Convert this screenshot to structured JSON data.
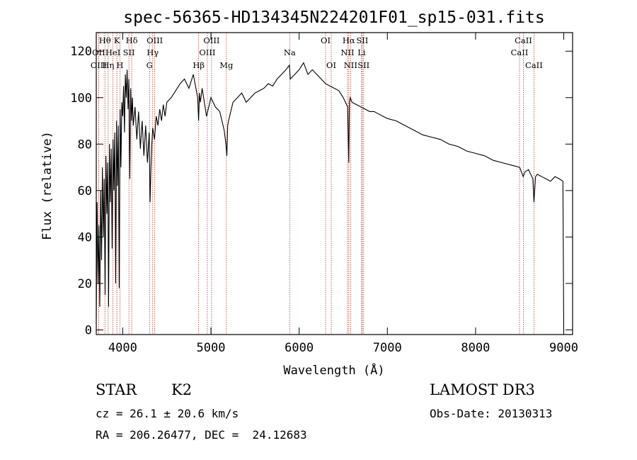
{
  "chart_data": {
    "type": "line",
    "title": "spec-56365-HD134345N224201F01_sp15-031.fits",
    "xlabel": "Wavelength (Å)",
    "ylabel": "Flux (relative)",
    "xlim": [
      3700,
      9100
    ],
    "ylim": [
      -2,
      128
    ],
    "xticks": [
      4000,
      5000,
      6000,
      7000,
      8000,
      9000
    ],
    "yticks": [
      0,
      20,
      40,
      60,
      80,
      100,
      120
    ],
    "spectrum": {
      "name": "flux",
      "x": [
        3700,
        3710,
        3720,
        3730,
        3740,
        3750,
        3760,
        3770,
        3780,
        3790,
        3800,
        3810,
        3820,
        3830,
        3840,
        3850,
        3860,
        3870,
        3880,
        3890,
        3900,
        3910,
        3920,
        3930,
        3940,
        3950,
        3960,
        3970,
        3980,
        3990,
        4000,
        4010,
        4020,
        4030,
        4040,
        4050,
        4060,
        4070,
        4080,
        4090,
        4100,
        4110,
        4120,
        4140,
        4160,
        4180,
        4200,
        4220,
        4240,
        4260,
        4280,
        4300,
        4310,
        4320,
        4330,
        4340,
        4360,
        4380,
        4400,
        4420,
        4440,
        4460,
        4480,
        4500,
        4550,
        4600,
        4650,
        4700,
        4750,
        4800,
        4850,
        4860,
        4870,
        4880,
        4900,
        4950,
        5000,
        5050,
        5100,
        5150,
        5170,
        5180,
        5190,
        5200,
        5250,
        5300,
        5350,
        5400,
        5450,
        5500,
        5550,
        5600,
        5650,
        5700,
        5750,
        5800,
        5850,
        5890,
        5900,
        5950,
        6000,
        6050,
        6100,
        6150,
        6200,
        6250,
        6300,
        6350,
        6400,
        6450,
        6500,
        6550,
        6563,
        6570,
        6580,
        6600,
        6650,
        6700,
        6750,
        6800,
        6850,
        6900,
        6950,
        7000,
        7100,
        7200,
        7300,
        7400,
        7500,
        7600,
        7700,
        7800,
        7900,
        8000,
        8100,
        8200,
        8300,
        8400,
        8500,
        8540,
        8560,
        8600,
        8650,
        8662,
        8680,
        8700,
        8750,
        8800,
        8850,
        8900,
        8950,
        8990,
        9000
      ],
      "y": [
        5,
        55,
        20,
        45,
        10,
        60,
        30,
        70,
        40,
        65,
        15,
        75,
        50,
        72,
        10,
        80,
        55,
        78,
        35,
        82,
        60,
        85,
        20,
        90,
        62,
        88,
        18,
        95,
        70,
        98,
        92,
        105,
        85,
        110,
        100,
        112,
        95,
        108,
        65,
        104,
        90,
        100,
        88,
        96,
        82,
        94,
        78,
        90,
        75,
        88,
        72,
        85,
        55,
        70,
        80,
        87,
        82,
        92,
        88,
        95,
        90,
        97,
        92,
        98,
        100,
        103,
        106,
        108,
        104,
        110,
        100,
        90,
        102,
        98,
        104,
        92,
        100,
        96,
        94,
        86,
        80,
        75,
        88,
        90,
        98,
        100,
        102,
        98,
        100,
        102,
        103,
        104,
        106,
        105,
        108,
        110,
        112,
        114,
        108,
        110,
        112,
        115,
        110,
        112,
        110,
        108,
        106,
        105,
        104,
        103,
        100,
        96,
        72,
        98,
        100,
        98,
        97,
        96,
        95,
        94,
        94,
        93,
        92,
        91,
        90,
        88,
        86,
        84,
        83,
        82,
        80,
        79,
        77,
        76,
        75,
        73,
        72,
        71,
        70,
        66,
        68,
        69,
        65,
        55,
        66,
        67,
        66,
        65,
        64,
        66,
        65,
        64,
        0
      ]
    },
    "lines": [
      {
        "name": "Hθ",
        "wave": 3798,
        "row": 0
      },
      {
        "name": "OII",
        "wave": 3727,
        "row": 1
      },
      {
        "name": "OIII",
        "wave": 3727,
        "row": 2
      },
      {
        "name": "HeI",
        "wave": 3889,
        "row": 1
      },
      {
        "name": "Hη",
        "wave": 3835,
        "row": 2
      },
      {
        "name": "K",
        "wave": 3934,
        "row": 0
      },
      {
        "name": "SII",
        "wave": 4070,
        "row": 1
      },
      {
        "name": "H",
        "wave": 3968,
        "row": 2
      },
      {
        "name": "Hδ",
        "wave": 4102,
        "row": 0
      },
      {
        "name": "OIII",
        "wave": 4363,
        "row": 0
      },
      {
        "name": "Hγ",
        "wave": 4340,
        "row": 1
      },
      {
        "name": "G",
        "wave": 4304,
        "row": 2
      },
      {
        "name": "Hβ",
        "wave": 4861,
        "row": 2
      },
      {
        "name": "OIII",
        "wave": 4959,
        "row": 1
      },
      {
        "name": "OIII",
        "wave": 5007,
        "row": 0
      },
      {
        "name": "Mg",
        "wave": 5175,
        "row": 2
      },
      {
        "name": "Na",
        "wave": 5893,
        "row": 1
      },
      {
        "name": "OI",
        "wave": 6300,
        "row": 0
      },
      {
        "name": "OI",
        "wave": 6364,
        "row": 2
      },
      {
        "name": "Hα",
        "wave": 6563,
        "row": 0
      },
      {
        "name": "NII",
        "wave": 6548,
        "row": 1
      },
      {
        "name": "NII",
        "wave": 6583,
        "row": 2
      },
      {
        "name": "SII",
        "wave": 6716,
        "row": 0
      },
      {
        "name": "Li",
        "wave": 6708,
        "row": 1
      },
      {
        "name": "SII",
        "wave": 6731,
        "row": 2
      },
      {
        "name": "CaII",
        "wave": 8542,
        "row": 0
      },
      {
        "name": "CaII",
        "wave": 8498,
        "row": 1
      },
      {
        "name": "CaII",
        "wave": 8662,
        "row": 2
      }
    ]
  },
  "info": {
    "class_label": "STAR",
    "subclass": "K2",
    "survey": "LAMOST DR3",
    "cz": "cz = 26.1 ± 20.6 km/s",
    "obs_date": "Obs-Date: 20130313",
    "coords": "RA = 206.26477, DEC =  24.12683"
  },
  "colors": {
    "line_marker": "#c0392b",
    "spectrum": "#000000"
  }
}
